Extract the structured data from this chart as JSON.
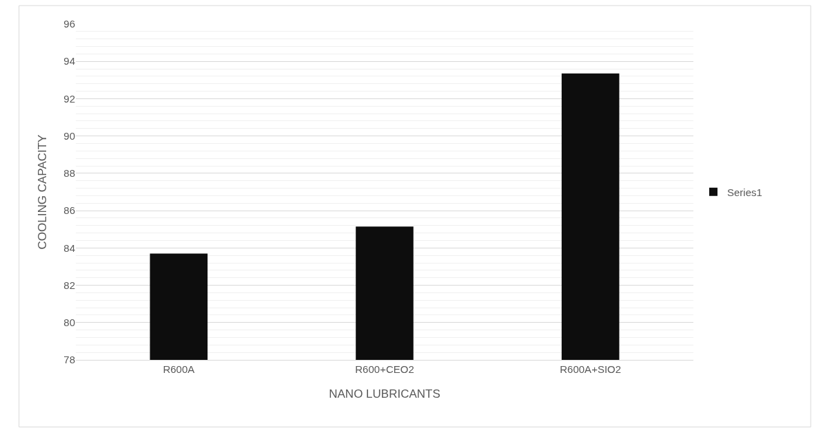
{
  "chart_data": {
    "type": "bar",
    "xlabel": "NANO LUBRICANTS",
    "ylabel": "COOLING CAPACITY",
    "categories": [
      "R600A",
      "R600+CEO2",
      "R600A+SIO2"
    ],
    "series": [
      {
        "name": "Series1",
        "color": "#0d0d0d",
        "values": [
          83.7,
          85.15,
          93.35
        ]
      }
    ],
    "ylim": [
      78,
      96
    ],
    "yticks": [
      78,
      80,
      82,
      84,
      86,
      88,
      90,
      92,
      94,
      96
    ],
    "grid": "y",
    "legend": "right"
  }
}
